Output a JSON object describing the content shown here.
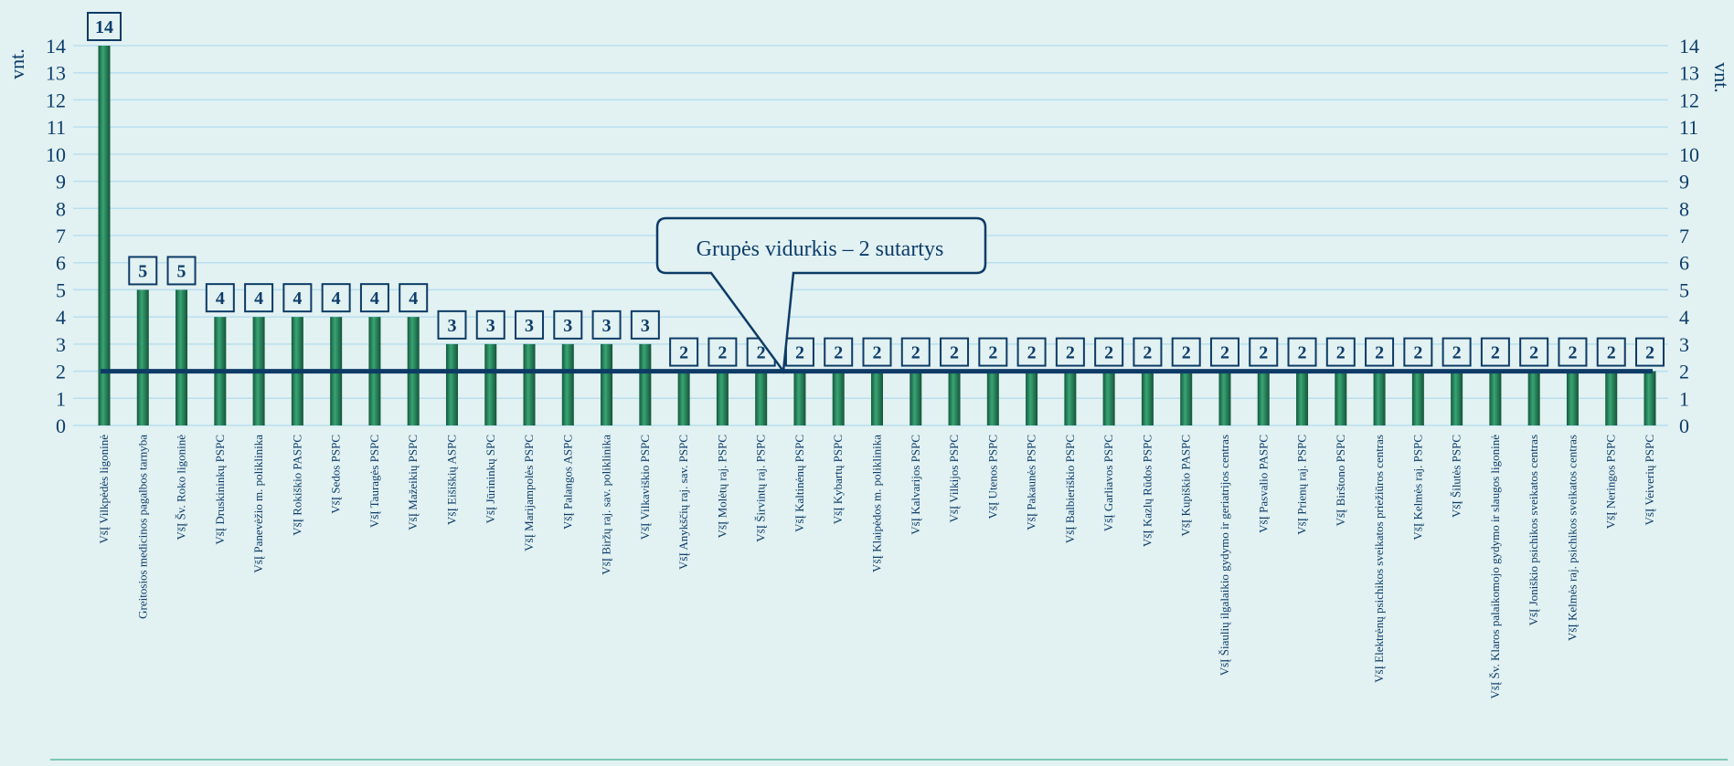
{
  "chart_data": {
    "type": "bar",
    "y_unit_left": "vnt.",
    "y_unit_right": "vnt.",
    "ylim": [
      0,
      14
    ],
    "yticks": [
      0,
      1,
      2,
      3,
      4,
      5,
      6,
      7,
      8,
      9,
      10,
      11,
      12,
      13,
      14
    ],
    "grid": true,
    "colors": {
      "bar": "#1e7a55",
      "bar_highlight": "#39a474",
      "grid": "#b8dff0",
      "average_line": "#0d3b66",
      "text": "#0c3d6b",
      "background": "#e2f1f1"
    },
    "average": {
      "value": 2,
      "label": "Grupės vidurkis – 2 sutartys"
    },
    "categories": [
      "VšĮ Vilkpėdės ligoninė",
      "Greitosios medicinos pagalbos tarnyba",
      "VšĮ Šv. Roko ligoninė",
      "VšĮ Druskininkų PSPC",
      "VšĮ Panevėžio m. poliklinika",
      "VšĮ Rokiškio PASPC",
      "VšĮ Sedos PSPC",
      "VšĮ Tauragės PSPC",
      "VšĮ Mažeikių PSPC",
      "VšĮ Eišiškių ASPC",
      "VšĮ Jūrininkų SPC",
      "VšĮ Marijampolės PSPC",
      "VšĮ Palangos ASPC",
      "VšĮ Biržų raj. sav. poliklinika",
      "VšĮ Vilkaviškio PSPC",
      "VšĮ Anykščių raj. sav. PSPC",
      "VšĮ Molėtų raj. PSPC",
      "VšĮ Širvintų raj. PSPC",
      "VšĮ Kaltinėnų PSPC",
      "VšĮ Kybartų PSPC",
      "VšĮ Klaipėdos m. poliklinika",
      "VšĮ Kalvarijos PSPC",
      "VšĮ Vilkijos PSPC",
      "VšĮ Utenos PSPC",
      "VšĮ Pakaunės PSPC",
      "VšĮ Balbieriškio PSPC",
      "VšĮ Garliavos PSPC",
      "VšĮ Kazlų Rūdos PSPC",
      "VšĮ Kupiškio PASPC",
      "VšĮ Šiaulių ilgalaikio gydymo ir geriatrijos centras",
      "VšĮ Pasvalio PASPC",
      "VšĮ Prienų raj. PSPC",
      "VšĮ Birštono PSPC",
      "VšĮ Elektrėnų psichikos sveikatos priežiūros centras",
      "VšĮ Kelmės raj. PSPC",
      "VšĮ Šilutės PSPC",
      "VšĮ Šv. Klaros palaikomojo gydymo ir slaugos ligoninė",
      "VšĮ Joniškio psichikos sveikatos centras",
      "VšĮ Kelmės raj. psichikos sveikatos centras",
      "VšĮ Neringos PSPC",
      "VšĮ Veiverių PSPC"
    ],
    "values": [
      14,
      5,
      5,
      4,
      4,
      4,
      4,
      4,
      4,
      3,
      3,
      3,
      3,
      3,
      3,
      2,
      2,
      2,
      2,
      2,
      2,
      2,
      2,
      2,
      2,
      2,
      2,
      2,
      2,
      2,
      2,
      2,
      2,
      2,
      2,
      2,
      2,
      2,
      2,
      2,
      2
    ]
  }
}
